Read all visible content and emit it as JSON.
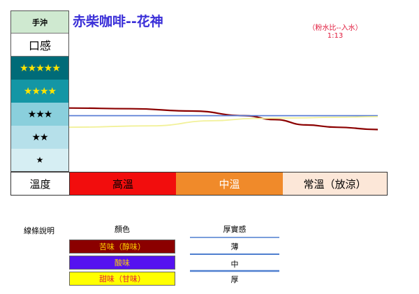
{
  "header": {
    "brewing": "手沖",
    "mouthfeel": "口感",
    "title": "赤柴咖啡--花神",
    "ratio_label": "（粉水比--入水）",
    "ratio_value": "1:13"
  },
  "ratings": [
    "★★★★★",
    "★★★★",
    "★★★",
    "★★",
    "★"
  ],
  "temperature": {
    "label": "溫度",
    "high": "高溫",
    "mid": "中溫",
    "room": "常溫（放涼）"
  },
  "legend": {
    "title": "線條說明",
    "color_header": "顏色",
    "body_header": "厚實感",
    "items": [
      {
        "label": "苦味（醇味）",
        "color": "#8b0000"
      },
      {
        "label": "酸味",
        "color": "#5512f0"
      },
      {
        "label": "甜味（甘味）",
        "color": "#ffff00"
      }
    ],
    "body_levels": [
      "薄",
      "中",
      "厚"
    ]
  },
  "chart_data": {
    "type": "line",
    "title": "赤柴咖啡--花神",
    "y_categories": [
      "★",
      "★★",
      "★★★",
      "★★★★",
      "★★★★★"
    ],
    "x_categories": [
      "高溫",
      "中溫",
      "常溫（放涼）"
    ],
    "x_range": [
      0,
      3
    ],
    "y_range": [
      0,
      5.6
    ],
    "note": "y in star-rating units",
    "series": [
      {
        "name": "苦味（醇味）",
        "color": "#8b0000",
        "points": [
          [
            0.0,
            2.75
          ],
          [
            0.6,
            2.72
          ],
          [
            1.2,
            2.62
          ],
          [
            1.7,
            2.42
          ],
          [
            2.0,
            2.25
          ],
          [
            2.3,
            2.02
          ],
          [
            2.6,
            1.92
          ],
          [
            3.0,
            1.82
          ]
        ]
      },
      {
        "name": "酸味",
        "color": "#5512f0",
        "points": [
          [
            0.0,
            2.42
          ],
          [
            3.0,
            2.42
          ]
        ]
      },
      {
        "name": "甜味（甘味）",
        "color": "#ffff00",
        "points": [
          [
            0.0,
            1.92
          ],
          [
            0.8,
            1.98
          ],
          [
            1.4,
            2.2
          ],
          [
            1.8,
            2.3
          ],
          [
            2.2,
            2.32
          ],
          [
            2.6,
            2.35
          ],
          [
            3.0,
            2.38
          ]
        ]
      }
    ]
  }
}
